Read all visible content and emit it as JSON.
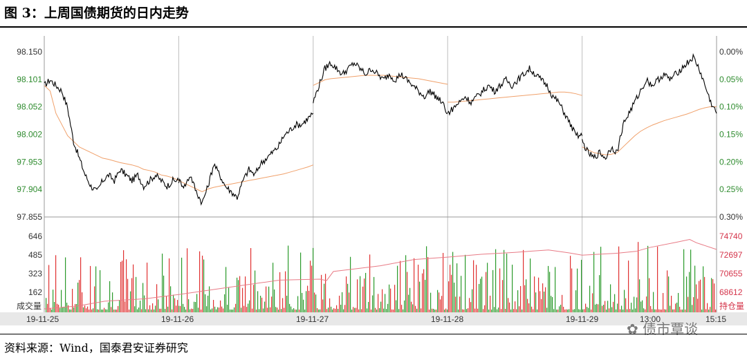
{
  "header": {
    "title": "图 3：上周国债期货的日内走势"
  },
  "footer": {
    "source": "资料来源：Wind，国泰君安证券研究"
  },
  "watermark": {
    "text": "债市覃谈"
  },
  "colors": {
    "price": "#000000",
    "avg": "#f0a06a",
    "vol_up": "#e03030",
    "vol_down": "#2a9a2a",
    "oi": "#e87a85",
    "grid": "#bbbbbb"
  },
  "chart_data": {
    "type": "line",
    "price_axis": {
      "ticks": [
        "98.150",
        "98.101",
        "98.052",
        "98.002",
        "97.953",
        "97.904",
        "97.855"
      ],
      "ylim": [
        97.855,
        98.15
      ]
    },
    "pct_axis": {
      "ticks": [
        "0.00%",
        "0.05%",
        "0.10%",
        "0.15%",
        "0.20%",
        "0.25%",
        "0.30%"
      ]
    },
    "volume_axis": {
      "label": "成交量",
      "ticks": [
        "646",
        "485",
        "323",
        "162"
      ]
    },
    "oi_axis": {
      "label": "持仓量",
      "ticks": [
        "74740",
        "72697",
        "70655",
        "68612"
      ]
    },
    "x_labels": [
      "19-11-25",
      "19-11-26",
      "19-11-27",
      "19-11-28",
      "19-11-29",
      "13:00",
      "15:15"
    ],
    "series": [
      {
        "name": "price",
        "days": [
          [
            98.09,
            98.1,
            98.09,
            98.08,
            98.05,
            97.99,
            97.96,
            97.93,
            97.91,
            97.9,
            97.92,
            97.93,
            97.92,
            97.94,
            97.93,
            97.92,
            97.93,
            97.91,
            97.92,
            97.93,
            97.92,
            97.91,
            97.92,
            97.92
          ],
          [
            97.92,
            97.91,
            97.93,
            97.9,
            97.88,
            97.91,
            97.95,
            97.93,
            97.91,
            97.9,
            97.89,
            97.92,
            97.94,
            97.93,
            97.95,
            97.96,
            97.97,
            97.98,
            98.0,
            98.01,
            98.02,
            98.02,
            98.03,
            98.04
          ],
          [
            98.06,
            98.09,
            98.12,
            98.13,
            98.12,
            98.11,
            98.12,
            98.13,
            98.12,
            98.11,
            98.12,
            98.11,
            98.1,
            98.11,
            98.1,
            98.11,
            98.1,
            98.09,
            98.08,
            98.07,
            98.08,
            98.07,
            98.06,
            98.04
          ],
          [
            98.04,
            98.05,
            98.06,
            98.07,
            98.06,
            98.07,
            98.08,
            98.09,
            98.08,
            98.09,
            98.1,
            98.09,
            98.1,
            98.11,
            98.12,
            98.11,
            98.1,
            98.09,
            98.07,
            98.06,
            98.04,
            98.02,
            98.0,
            98.0
          ],
          [
            97.99,
            97.97,
            97.96,
            97.97,
            97.96,
            97.98,
            97.97,
            98.02,
            98.04,
            98.06,
            98.08,
            98.1,
            98.09,
            98.1,
            98.11,
            98.1,
            98.11,
            98.12,
            98.13,
            98.14,
            98.12,
            98.09,
            98.06,
            98.04
          ]
        ]
      },
      {
        "name": "avg",
        "days": [
          [
            98.09,
            98.08,
            98.04,
            98.02,
            98.0,
            97.99,
            97.98,
            97.975,
            97.97,
            97.965,
            97.96,
            97.958,
            97.955,
            97.952,
            97.95,
            97.948,
            97.945,
            97.94,
            97.938,
            97.935,
            97.93,
            97.928,
            97.925,
            97.92
          ],
          [
            97.92,
            97.915,
            97.91,
            97.905,
            97.9,
            97.905,
            97.908,
            97.91,
            97.912,
            97.914,
            97.916,
            97.918,
            97.92,
            97.922,
            97.924,
            97.926,
            97.928,
            97.93,
            97.932,
            97.935,
            97.938,
            97.941,
            97.944,
            97.948
          ],
          [
            98.09,
            98.095,
            98.1,
            98.102,
            98.103,
            98.104,
            98.105,
            98.106,
            98.107,
            98.108,
            98.108,
            98.108,
            98.108,
            98.107,
            98.106,
            98.105,
            98.104,
            98.103,
            98.102,
            98.1,
            98.098,
            98.096,
            98.094,
            98.092
          ],
          [
            98.06,
            98.06,
            98.061,
            98.062,
            98.063,
            98.064,
            98.065,
            98.066,
            98.067,
            98.068,
            98.069,
            98.07,
            98.071,
            98.072,
            98.073,
            98.074,
            98.075,
            98.076,
            98.077,
            98.078,
            98.078,
            98.077,
            98.075,
            98.072
          ],
          [
            97.98,
            97.975,
            97.97,
            97.968,
            97.966,
            97.967,
            97.97,
            97.98,
            97.99,
            98.0,
            98.008,
            98.014,
            98.019,
            98.023,
            98.027,
            98.03,
            98.033,
            98.036,
            98.039,
            98.043,
            98.047,
            98.05,
            98.052,
            98.052
          ]
        ]
      },
      {
        "name": "open_interest",
        "points": [
          [
            0,
            68100
          ],
          [
            0.05,
            68400
          ],
          [
            0.09,
            68900
          ],
          [
            0.15,
            69150
          ],
          [
            0.2,
            69600
          ],
          [
            0.25,
            70100
          ],
          [
            0.3,
            70600
          ],
          [
            0.35,
            71100
          ],
          [
            0.41,
            71200
          ],
          [
            0.42,
            71050
          ],
          [
            0.43,
            72000
          ],
          [
            0.5,
            72600
          ],
          [
            0.55,
            73250
          ],
          [
            0.6,
            73500
          ],
          [
            0.65,
            73800
          ],
          [
            0.7,
            74000
          ],
          [
            0.75,
            74250
          ],
          [
            0.78,
            73950
          ],
          [
            0.8,
            73700
          ],
          [
            0.85,
            73900
          ],
          [
            0.88,
            74100
          ],
          [
            0.9,
            74500
          ],
          [
            0.94,
            75050
          ],
          [
            0.96,
            75350
          ],
          [
            0.97,
            75000
          ],
          [
            1.0,
            74300
          ]
        ]
      }
    ]
  }
}
